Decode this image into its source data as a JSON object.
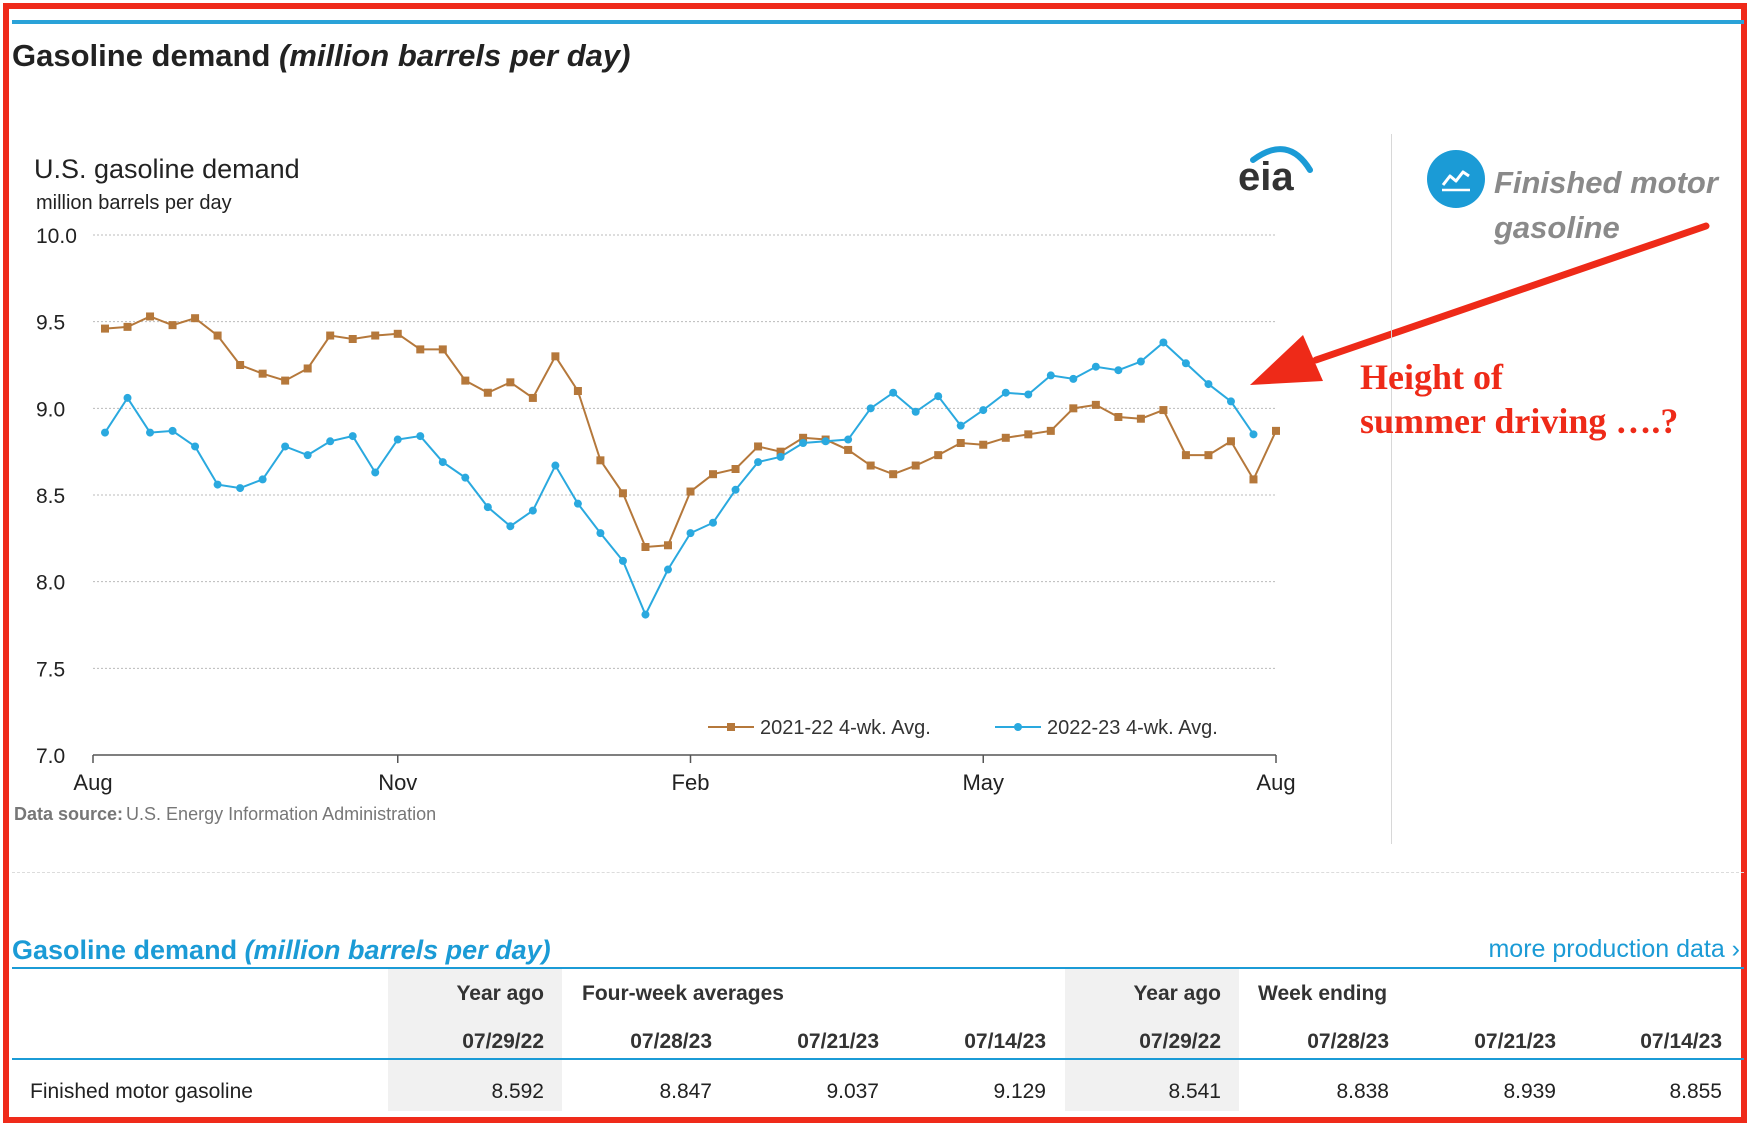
{
  "page_heading": {
    "main": "Gasoline demand ",
    "italic": "(million barrels per day)"
  },
  "chart_data": {
    "type": "line",
    "title": "U.S. gasoline demand",
    "subtitle": "million barrels per day",
    "logo": "eia",
    "ylim": [
      7.0,
      10.0
    ],
    "y_ticks": [
      "10.0",
      "9.5",
      "9.0",
      "8.5",
      "8.0",
      "7.5",
      "7.0"
    ],
    "x_ticks": [
      "Aug",
      "Nov",
      "Feb",
      "May",
      "Aug"
    ],
    "source_label": "Data source:",
    "source_text": "U.S. Energy Information Administration",
    "legend": [
      "2021-22  4-wk. Avg.",
      "2022-23  4-wk. Avg."
    ],
    "series": [
      {
        "name": "2021-22  4-wk. Avg.",
        "color": "#b5783b",
        "marker": "square",
        "values": [
          9.46,
          9.47,
          9.53,
          9.48,
          9.52,
          9.42,
          9.25,
          9.2,
          9.16,
          9.23,
          9.42,
          9.4,
          9.42,
          9.43,
          9.34,
          9.34,
          9.16,
          9.09,
          9.15,
          9.06,
          9.3,
          9.1,
          8.7,
          8.51,
          8.2,
          8.21,
          8.52,
          8.62,
          8.65,
          8.78,
          8.75,
          8.83,
          8.82,
          8.76,
          8.67,
          8.62,
          8.67,
          8.73,
          8.8,
          8.79,
          8.83,
          8.85,
          8.87,
          9.0,
          9.02,
          8.95,
          8.94,
          8.99,
          8.73,
          8.73,
          8.81,
          8.59,
          8.87
        ]
      },
      {
        "name": "2022-23  4-wk. Avg.",
        "color": "#2aa9df",
        "marker": "circle",
        "values": [
          8.86,
          9.06,
          8.86,
          8.87,
          8.78,
          8.56,
          8.54,
          8.59,
          8.78,
          8.73,
          8.81,
          8.84,
          8.63,
          8.82,
          8.84,
          8.69,
          8.6,
          8.43,
          8.32,
          8.41,
          8.67,
          8.45,
          8.28,
          8.12,
          7.81,
          8.07,
          8.28,
          8.34,
          8.53,
          8.69,
          8.72,
          8.8,
          8.81,
          8.82,
          9.0,
          9.09,
          8.98,
          9.07,
          8.9,
          8.99,
          9.09,
          9.08,
          9.19,
          9.17,
          9.24,
          9.22,
          9.27,
          9.38,
          9.26,
          9.14,
          9.04,
          8.85
        ]
      }
    ]
  },
  "sidebar": {
    "label": "Finished motor gasoline",
    "icon": "line-chart-icon"
  },
  "annotation": {
    "line1": "Height of",
    "line2": "summer driving ….?"
  },
  "table": {
    "heading": {
      "main": "Gasoline demand ",
      "italic": "(million barrels per day)"
    },
    "more_link": "more production data ›",
    "groups": {
      "year_ago_1": "Year ago",
      "four_week": "Four-week averages",
      "year_ago_2": "Year ago",
      "week_ending": "Week ending"
    },
    "dates": [
      "07/29/22",
      "07/28/23",
      "07/21/23",
      "07/14/23",
      "07/29/22",
      "07/28/23",
      "07/21/23",
      "07/14/23"
    ],
    "rows": [
      {
        "label": "Finished motor gasoline",
        "values": [
          "8.592",
          "8.847",
          "9.037",
          "9.129",
          "8.541",
          "8.838",
          "8.939",
          "8.855"
        ]
      }
    ]
  },
  "colors": {
    "accent_blue": "#1b9bd6",
    "annotation_red": "#ee2a18",
    "series_2021": "#b5783b",
    "series_2022": "#2aa9df"
  }
}
